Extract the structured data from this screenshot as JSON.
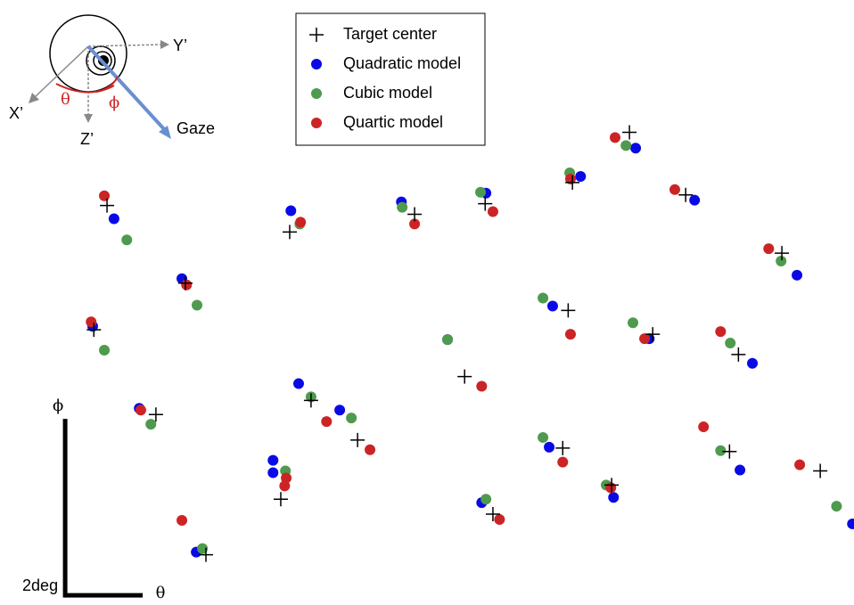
{
  "chart_data": {
    "type": "scatter",
    "xlim": [
      -1.68,
      20.34
    ],
    "ylim": [
      -0.11,
      6.75
    ],
    "scale_bar": {
      "label": "2deg",
      "length": 2,
      "x_label": "θ",
      "y_label": "ϕ"
    },
    "series": [
      {
        "name": "Target center",
        "marker": "plus",
        "color": "#000000",
        "x": [
          1.08,
          3.1,
          0.74,
          2.34,
          3.63,
          5.79,
          6.34,
          5.56,
          7.54,
          9.01,
          10.83,
          10.3,
          11.03,
          13.08,
          14.55,
          12.97,
          12.83,
          14.09,
          15.15,
          16.0,
          18.48,
          17.36,
          17.13,
          19.47
        ],
        "y": [
          4.42,
          3.54,
          3.01,
          2.05,
          0.46,
          4.12,
          2.21,
          1.09,
          1.76,
          4.32,
          4.44,
          2.48,
          0.92,
          4.68,
          5.25,
          3.23,
          1.67,
          1.25,
          2.96,
          4.54,
          3.88,
          2.73,
          1.63,
          1.41
        ]
      },
      {
        "name": "Quadratic model",
        "marker": "dot",
        "color": "#0a0ae6",
        "x": [
          1.26,
          3.01,
          0.71,
          1.91,
          3.38,
          5.82,
          6.02,
          5.36,
          5.36,
          7.08,
          8.67,
          10.85,
          10.74,
          9.86,
          13.29,
          14.71,
          12.57,
          12.48,
          14.14,
          15.06,
          16.23,
          18.87,
          17.72,
          17.4,
          20.3
        ],
        "y": [
          4.27,
          3.59,
          3.05,
          2.12,
          0.49,
          4.36,
          2.4,
          1.53,
          1.39,
          2.1,
          4.46,
          4.56,
          1.05,
          2.9,
          4.75,
          5.07,
          3.28,
          1.68,
          1.11,
          2.91,
          4.48,
          3.63,
          2.63,
          1.42,
          0.81
        ]
      },
      {
        "name": "Cubic model",
        "marker": "dot",
        "color": "#4e9a4e",
        "x": [
          1.59,
          3.4,
          1.01,
          2.21,
          3.54,
          6.05,
          6.34,
          5.68,
          7.38,
          8.69,
          10.71,
          10.85,
          9.86,
          13.01,
          14.46,
          12.32,
          12.32,
          13.95,
          14.64,
          17.15,
          18.46,
          16.9,
          19.89
        ],
        "y": [
          4.03,
          3.29,
          2.78,
          1.94,
          0.53,
          4.21,
          2.25,
          1.41,
          2.01,
          4.4,
          4.57,
          1.09,
          2.9,
          4.79,
          5.1,
          3.37,
          1.79,
          1.25,
          3.09,
          2.86,
          3.79,
          1.64,
          1.01
        ]
      },
      {
        "name": "Quartic model",
        "marker": "dot",
        "color": "#cc2424",
        "x": [
          1.01,
          3.13,
          0.67,
          1.95,
          3.01,
          6.07,
          6.74,
          5.66,
          5.7,
          7.86,
          9.01,
          11.03,
          11.2,
          10.74,
          13.03,
          14.18,
          13.03,
          12.83,
          14.07,
          14.94,
          15.72,
          18.14,
          16.9,
          16.46,
          18.94
        ],
        "y": [
          4.53,
          3.52,
          3.1,
          2.1,
          0.85,
          4.23,
          1.97,
          1.24,
          1.33,
          1.65,
          4.21,
          4.35,
          0.86,
          2.37,
          4.72,
          5.19,
          2.96,
          1.51,
          1.22,
          2.91,
          4.6,
          3.93,
          2.99,
          1.91,
          1.48
        ]
      }
    ],
    "inset": {
      "y_axis": "Y’",
      "x_axis": "X’",
      "z_axis": "Z’",
      "theta": "θ",
      "phi": "ϕ",
      "gaze": "Gaze"
    }
  }
}
